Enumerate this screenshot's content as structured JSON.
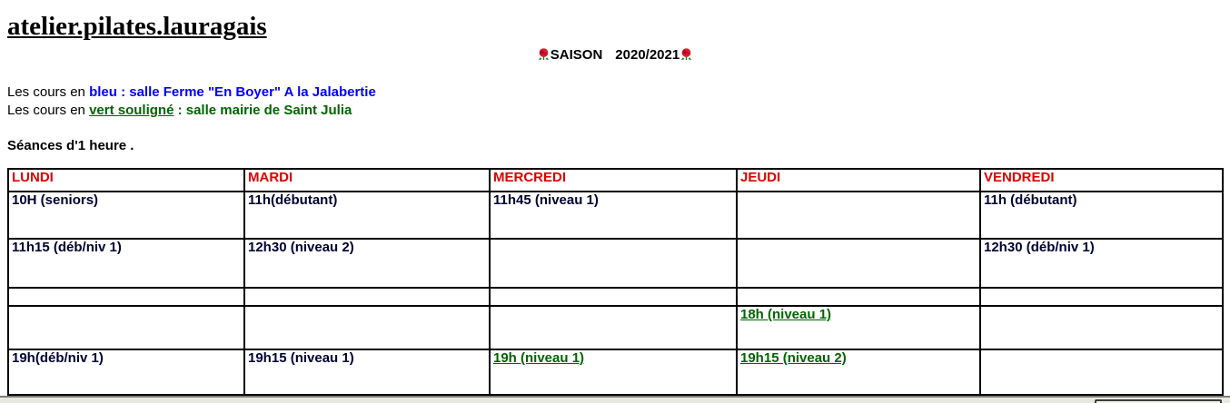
{
  "header": {
    "site_title": "atelier.pilates.lauragais",
    "season_word": "SAISON",
    "season_years": "2020/2021"
  },
  "legend": {
    "line1_prefix": "Les cours en ",
    "line1_highlight": "bleu : salle Ferme \"En Boyer\" A la Jalabertie",
    "line2_prefix": "Les cours en ",
    "line2_underlined": "vert souligné",
    "line2_suffix": " : salle mairie de Saint Julia",
    "note": "Séances d'1 heure ."
  },
  "colors": {
    "day_header_red": "#dd0000",
    "location_blue": "#0000ff",
    "location_green": "#006400",
    "cell_text": "#000033"
  },
  "schedule": {
    "columns": [
      "LUNDI",
      "MARDI",
      "MERCREDI",
      "JEUDI",
      "VENDREDI"
    ],
    "rows": [
      {
        "cells": [
          {
            "text": "10H (seniors)"
          },
          {
            "text": "11h(débutant)"
          },
          {
            "text": "11h45 (niveau 1)"
          },
          {
            "text": ""
          },
          {
            "text": "11h (débutant)"
          }
        ]
      },
      {
        "cells": [
          {
            "text": "11h15 (déb/niv 1)"
          },
          {
            "text": "12h30 (niveau 2)"
          },
          {
            "text": ""
          },
          {
            "text": ""
          },
          {
            "text": "12h30 (déb/niv 1)"
          }
        ]
      },
      {
        "cells": [
          {
            "text": ""
          },
          {
            "text": ""
          },
          {
            "text": ""
          },
          {
            "text": ""
          },
          {
            "text": ""
          }
        ]
      },
      {
        "cells": [
          {
            "text": ""
          },
          {
            "text": ""
          },
          {
            "text": ""
          },
          {
            "text": "18h (niveau 1)",
            "green": true
          },
          {
            "text": ""
          }
        ]
      },
      {
        "cells": [
          {
            "text": "19h(déb/niv 1)"
          },
          {
            "text": "19h15 (niveau 1)"
          },
          {
            "text": "19h (niveau 1)",
            "green": true
          },
          {
            "text": "19h15 (niveau 2)",
            "green": true
          },
          {
            "text": ""
          }
        ]
      }
    ]
  }
}
